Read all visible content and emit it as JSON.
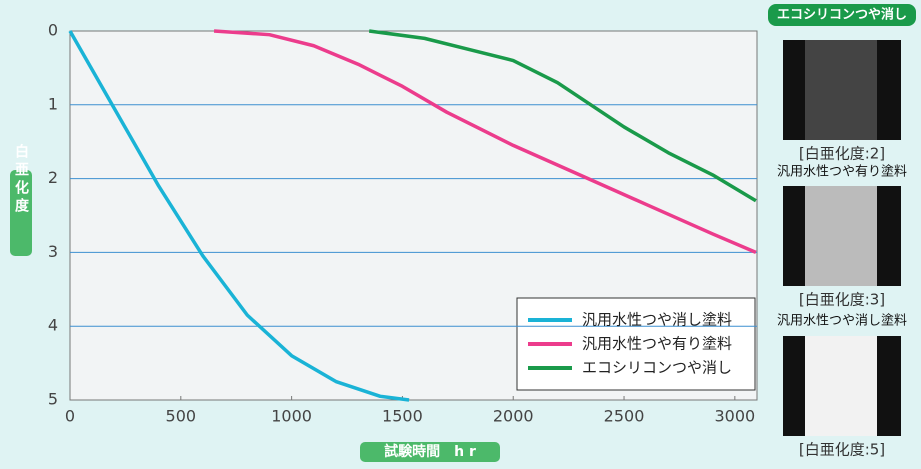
{
  "chart_data": {
    "type": "line",
    "y_label": "白亜化度",
    "x_label": "試験時間　h r",
    "xlim": [
      0,
      3100
    ],
    "xticks": [
      0,
      500,
      1000,
      1500,
      2000,
      2500,
      3000
    ],
    "ylim": [
      0,
      5
    ],
    "yticks": [
      0,
      1,
      2,
      3,
      4,
      5
    ],
    "y_inverted": true,
    "grid": true,
    "series": [
      {
        "name": "汎用水性つや消し塗料",
        "color": "#1ab3d6",
        "x": [
          0,
          200,
          400,
          600,
          800,
          1000,
          1200,
          1400,
          1530
        ],
        "values": [
          0,
          1.05,
          2.1,
          3.05,
          3.85,
          4.4,
          4.75,
          4.95,
          5
        ]
      },
      {
        "name": "汎用水性つや有り塗料",
        "color": "#ec3c8c",
        "x": [
          650,
          900,
          1100,
          1300,
          1500,
          1700,
          2000,
          2300,
          2600,
          2900,
          3095
        ],
        "values": [
          0,
          0.05,
          0.2,
          0.45,
          0.75,
          1.1,
          1.55,
          1.95,
          2.35,
          2.75,
          3
        ]
      },
      {
        "name": "エコシリコンつや消し",
        "color": "#1a9a4a",
        "x": [
          1350,
          1600,
          1800,
          2000,
          2200,
          2350,
          2500,
          2700,
          2900,
          3095
        ],
        "values": [
          0,
          0.1,
          0.25,
          0.4,
          0.7,
          1.0,
          1.3,
          1.65,
          1.95,
          2.3
        ]
      }
    ]
  },
  "side_panel": {
    "title": "エコシリコンつや消し",
    "captions": [
      "[白亜化度:2]",
      "汎用水性つや有り塗料",
      "[白亜化度:3]",
      "汎用水性つや消し塗料",
      "[白亜化度:5]"
    ]
  }
}
